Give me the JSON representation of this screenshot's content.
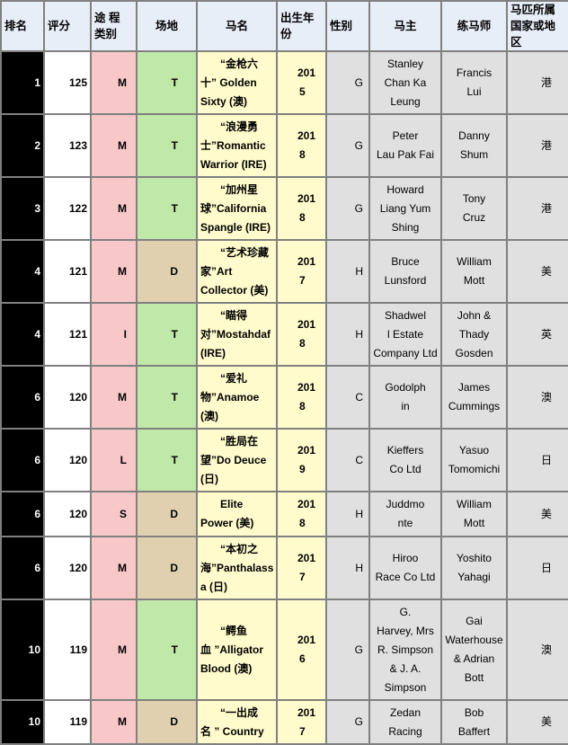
{
  "headers": [
    "排名",
    "评分",
    "途 程 类别",
    "场地",
    "马名",
    "出生年份",
    "性别",
    "马主",
    "练马师",
    "马匹所属国家或地区"
  ],
  "colors": {
    "rank_bg": "#000000",
    "type_bg": "#f8c8c8",
    "turf_bg": "#c0e8a8",
    "dirt_bg": "#e0d0b0",
    "name_bg": "#fffbcc",
    "grey_bg": "#e0e0e0",
    "header_bg": "#e8eef8"
  },
  "rows": [
    {
      "rank": "1",
      "rating": "125",
      "type": "M",
      "surface": "T",
      "name": [
        "“金枪六",
        "十” Golden",
        "Sixty (澳)"
      ],
      "year": [
        "201",
        "5"
      ],
      "sex": "G",
      "owner": [
        "Stanley",
        "Chan Ka",
        "Leung"
      ],
      "trainer": [
        "Francis",
        "Lui"
      ],
      "country": "港"
    },
    {
      "rank": "2",
      "rating": "123",
      "type": "M",
      "surface": "T",
      "name": [
        "“浪漫勇",
        "士”Romantic",
        "Warrior (IRE)"
      ],
      "year": [
        "201",
        "8"
      ],
      "sex": "G",
      "owner": [
        "Peter",
        "Lau Pak Fai"
      ],
      "trainer": [
        "Danny",
        "Shum"
      ],
      "country": "港"
    },
    {
      "rank": "3",
      "rating": "122",
      "type": "M",
      "surface": "T",
      "name": [
        "“加州星",
        "球”California",
        "Spangle (IRE)"
      ],
      "year": [
        "201",
        "8"
      ],
      "sex": "G",
      "owner": [
        "Howard",
        "Liang Yum",
        "Shing"
      ],
      "trainer": [
        "Tony",
        "Cruz"
      ],
      "country": "港"
    },
    {
      "rank": "4",
      "rating": "121",
      "type": "M",
      "surface": "D",
      "name": [
        "“艺术珍藏",
        "家”Art",
        "Collector (美)"
      ],
      "year": [
        "201",
        "7"
      ],
      "sex": "H",
      "owner": [
        "Bruce",
        "Lunsford"
      ],
      "trainer": [
        "William",
        "Mott"
      ],
      "country": "美"
    },
    {
      "rank": "4",
      "rating": "121",
      "type": "I",
      "surface": "T",
      "name": [
        "“瞄得",
        "对”Mostahdaf",
        "(IRE)"
      ],
      "year": [
        "201",
        "8"
      ],
      "sex": "H",
      "owner": [
        "Shadwel",
        "l Estate",
        "Company Ltd"
      ],
      "trainer": [
        "John &",
        "Thady",
        "Gosden"
      ],
      "country": "英"
    },
    {
      "rank": "6",
      "rating": "120",
      "type": "M",
      "surface": "T",
      "name": [
        "“爱礼",
        "物”Anamoe",
        "(澳)"
      ],
      "year": [
        "201",
        "8"
      ],
      "sex": "C",
      "owner": [
        "Godolph",
        "in"
      ],
      "trainer": [
        "James",
        "Cummings"
      ],
      "country": "澳"
    },
    {
      "rank": "6",
      "rating": "120",
      "type": "L",
      "surface": "T",
      "name": [
        "“胜局在",
        "望”Do Deuce",
        "(日)"
      ],
      "year": [
        "201",
        "9"
      ],
      "sex": "C",
      "owner": [
        "Kieffers",
        "Co Ltd"
      ],
      "trainer": [
        "Yasuo",
        "Tomomichi"
      ],
      "country": "日"
    },
    {
      "rank": "6",
      "rating": "120",
      "type": "S",
      "surface": "D",
      "name": [
        "Elite",
        "Power (美)"
      ],
      "year": [
        "201",
        "8"
      ],
      "sex": "H",
      "owner": [
        "Juddmo",
        "nte"
      ],
      "trainer": [
        "William",
        "Mott"
      ],
      "country": "美"
    },
    {
      "rank": "6",
      "rating": "120",
      "type": "M",
      "surface": "D",
      "name": [
        "“本初之",
        "海”Panthalass",
        "a (日)"
      ],
      "year": [
        "201",
        "7"
      ],
      "sex": "H",
      "owner": [
        "Hiroo",
        "Race Co Ltd"
      ],
      "trainer": [
        "Yoshito",
        "Yahagi"
      ],
      "country": "日"
    },
    {
      "rank": "10",
      "rating": "119",
      "type": "M",
      "surface": "T",
      "name": [
        "“鳄鱼",
        "血 ”Alligator",
        "Blood (澳)"
      ],
      "year": [
        "201",
        "6"
      ],
      "sex": "G",
      "owner": [
        "G.",
        "Harvey, Mrs",
        "R. Simpson",
        "& J. A.",
        "Simpson"
      ],
      "trainer": [
        "Gai",
        "Waterhouse",
        "& Adrian",
        "Bott"
      ],
      "country": "澳"
    },
    {
      "rank": "10",
      "rating": "119",
      "type": "M",
      "surface": "D",
      "name": [
        "“一出成",
        "名 ” Country"
      ],
      "year": [
        "201",
        "7"
      ],
      "sex": "G",
      "owner": [
        "Zedan",
        "Racing"
      ],
      "trainer": [
        "Bob",
        "Baffert"
      ],
      "country": "美"
    }
  ]
}
